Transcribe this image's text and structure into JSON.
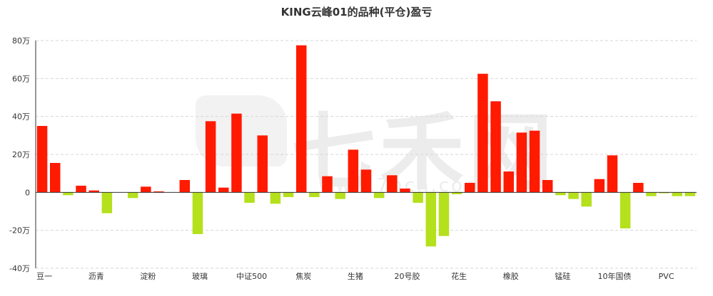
{
  "chart_data": {
    "type": "bar",
    "title": "KING云峰01的品种(平仓)盈亏",
    "xlabel": "",
    "ylabel": "",
    "ylim": [
      -40,
      80
    ],
    "yticks": [
      -40,
      -20,
      0,
      20,
      40,
      60,
      80
    ],
    "ytick_labels": [
      "-40万",
      "-20万",
      "0",
      "20万",
      "40万",
      "60万",
      "80万"
    ],
    "unit": "万",
    "grid": true,
    "legend": "none",
    "positive_color": "#ff1a00",
    "negative_color": "#b5e01c",
    "xtick_labels": [
      "豆一",
      "沥青",
      "淀粉",
      "玻璃",
      "中证500",
      "焦炭",
      "生猪",
      "20号胶",
      "花生",
      "橡胶",
      "锰硅",
      "10年国债",
      "PVC"
    ],
    "xtick_every": 4,
    "values": [
      35,
      15.5,
      -1.5,
      3.5,
      1,
      -11,
      0,
      -3,
      3,
      0.5,
      0,
      6.5,
      -22,
      37.5,
      2.5,
      41.5,
      -5.5,
      30,
      -6,
      -2.5,
      77.5,
      -2.5,
      8.5,
      -3.5,
      22.5,
      12,
      -3,
      9,
      2,
      -5.5,
      -28.5,
      -23,
      -1,
      5,
      62.5,
      48,
      11,
      31.5,
      32.5,
      6.5,
      -1.5,
      -3.5,
      -7.5,
      7,
      19.5,
      -19,
      5,
      -2,
      -0.5,
      -2,
      -2
    ]
  },
  "watermark": {
    "text": "七禾网",
    "subtext": "www.7hcn.com"
  }
}
